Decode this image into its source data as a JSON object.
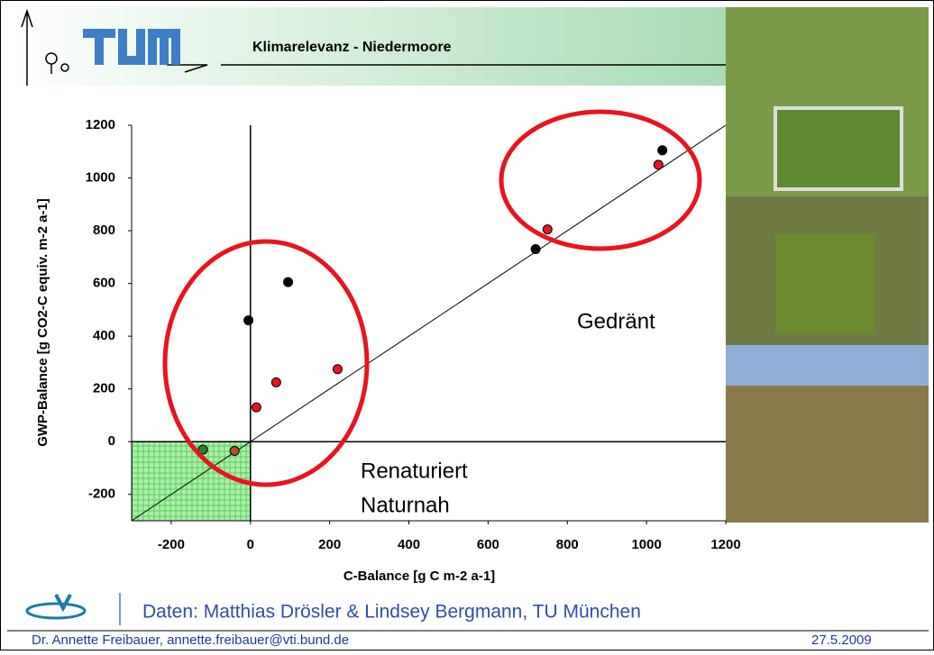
{
  "header": {
    "title": "Klimarelevanz - Niedermoore"
  },
  "chart_data": {
    "type": "scatter",
    "x_label": "C-Balance [g C m-2 a-1]",
    "y_label": "GWP-Balance [g CO2-C equiv. m-2 a-1]",
    "xlim": [
      -300,
      1200
    ],
    "ylim": [
      -300,
      1200
    ],
    "xticks": [
      -200,
      0,
      200,
      400,
      600,
      800,
      1000,
      1200
    ],
    "yticks": [
      -200,
      0,
      200,
      400,
      600,
      800,
      1000,
      1200
    ],
    "annotations": [
      "Gedränt",
      "Renaturiert",
      "Naturnah"
    ],
    "series": [
      {
        "color": "#000000",
        "x": [
          -5,
          95,
          720,
          1040
        ],
        "values": [
          460,
          605,
          730,
          1105
        ]
      },
      {
        "color": "#e8141e",
        "x": [
          15,
          65,
          220,
          750,
          1030
        ],
        "values": [
          130,
          225,
          275,
          805,
          1050
        ]
      },
      {
        "color": "#2e7d32",
        "x": [
          -120
        ],
        "values": [
          -30
        ]
      },
      {
        "color": "#b5501e",
        "x": [
          -40
        ],
        "values": [
          -35
        ]
      }
    ]
  },
  "footer": {
    "source": "Daten: Matthias Drösler & Lindsey Bergmann, TU München",
    "author": "Dr. Annette Freibauer, annette.freibauer@vti.bund.de",
    "date": "27.5.2009"
  }
}
